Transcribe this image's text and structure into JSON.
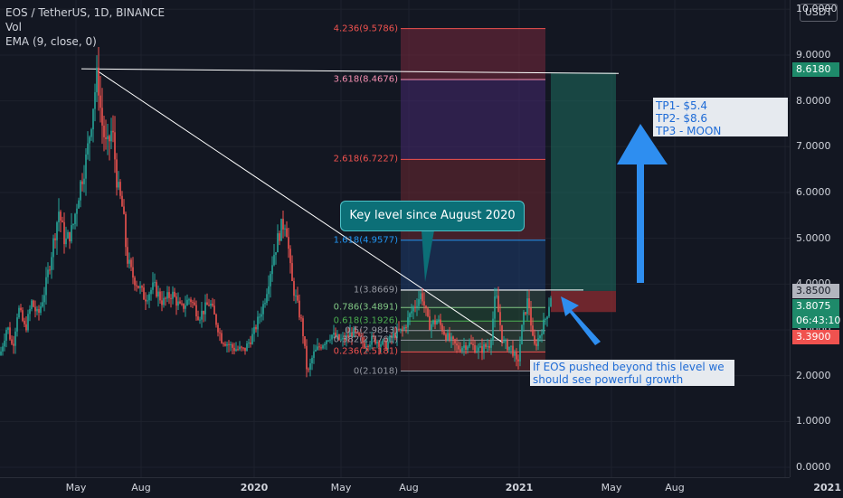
{
  "header": {
    "symbol_line": "EOS / TetherUS, 1D, BINANCE",
    "vol_label": "Vol",
    "ema_label": "EMA (9, close, 0)",
    "currency": "USDT"
  },
  "chart_data": {
    "type": "candlestick",
    "symbol": "EOS / TetherUS",
    "interval": "1D",
    "exchange": "BINANCE",
    "y_range": [
      0,
      10.2
    ],
    "y_ticks": [
      "0.0000",
      "1.0000",
      "2.0000",
      "3.0000",
      "4.0000",
      "5.0000",
      "6.0000",
      "7.0000",
      "8.0000",
      "9.0000",
      "10.0000"
    ],
    "x_ticks": [
      {
        "label": "May",
        "bold": false
      },
      {
        "label": "Aug",
        "bold": false
      },
      {
        "label": "2020",
        "bold": true
      },
      {
        "label": "May",
        "bold": false
      },
      {
        "label": "Aug",
        "bold": false
      },
      {
        "label": "2021",
        "bold": true
      },
      {
        "label": "May",
        "bold": false
      },
      {
        "label": "Aug",
        "bold": false
      },
      {
        "label": "2021",
        "bold": true
      }
    ],
    "price_path": [
      [
        0,
        2.45
      ],
      [
        8,
        3.1
      ],
      [
        14,
        2.6
      ],
      [
        20,
        3.5
      ],
      [
        28,
        3.0
      ],
      [
        35,
        3.6
      ],
      [
        42,
        3.3
      ],
      [
        50,
        3.9
      ],
      [
        58,
        4.8
      ],
      [
        65,
        5.6
      ],
      [
        72,
        4.9
      ],
      [
        80,
        5.2
      ],
      [
        88,
        6.1
      ],
      [
        96,
        6.8
      ],
      [
        104,
        8.1
      ],
      [
        108,
        8.6
      ],
      [
        112,
        7.6
      ],
      [
        118,
        6.9
      ],
      [
        124,
        7.4
      ],
      [
        130,
        6.1
      ],
      [
        136,
        5.6
      ],
      [
        140,
        4.6
      ],
      [
        146,
        4.2
      ],
      [
        152,
        4.0
      ],
      [
        160,
        3.7
      ],
      [
        170,
        3.95
      ],
      [
        180,
        3.6
      ],
      [
        190,
        3.8
      ],
      [
        200,
        3.45
      ],
      [
        210,
        3.7
      ],
      [
        220,
        3.3
      ],
      [
        232,
        3.6
      ],
      [
        245,
        2.8
      ],
      [
        258,
        2.6
      ],
      [
        270,
        2.55
      ],
      [
        280,
        2.9
      ],
      [
        292,
        3.6
      ],
      [
        302,
        4.6
      ],
      [
        310,
        5.2
      ],
      [
        316,
        5.4
      ],
      [
        322,
        4.1
      ],
      [
        328,
        3.6
      ],
      [
        334,
        3.1
      ],
      [
        340,
        2.0
      ],
      [
        346,
        2.45
      ],
      [
        356,
        2.7
      ],
      [
        366,
        2.9
      ],
      [
        378,
        2.75
      ],
      [
        390,
        2.95
      ],
      [
        402,
        2.7
      ],
      [
        414,
        2.8
      ],
      [
        426,
        2.65
      ],
      [
        436,
        2.9
      ],
      [
        446,
        3.0
      ],
      [
        456,
        3.45
      ],
      [
        466,
        3.8
      ],
      [
        474,
        3.1
      ],
      [
        484,
        3.2
      ],
      [
        494,
        2.85
      ],
      [
        506,
        2.6
      ],
      [
        518,
        2.7
      ],
      [
        530,
        2.55
      ],
      [
        542,
        2.7
      ],
      [
        548,
        3.8
      ],
      [
        556,
        2.7
      ],
      [
        566,
        2.6
      ],
      [
        572,
        2.2
      ],
      [
        578,
        3.2
      ],
      [
        584,
        3.7
      ],
      [
        590,
        2.6
      ],
      [
        596,
        2.85
      ],
      [
        604,
        3.3
      ],
      [
        610,
        3.84
      ]
    ],
    "volume_note": "",
    "fibonacci": [
      {
        "label": "4.236(9.5786)",
        "price": 9.5786,
        "color": "#f0524f"
      },
      {
        "label": "3.618(8.4676)",
        "price": 8.4676,
        "color": "#f48fb1"
      },
      {
        "label": "2.618(6.7227)",
        "price": 6.7227,
        "color": "#f0524f"
      },
      {
        "label": "1.618(4.9577)",
        "price": 4.9577,
        "color": "#2196f3"
      },
      {
        "label": "1(3.8669)",
        "price": 3.8669,
        "color": "#9598a1"
      },
      {
        "label": "0.786(3.4891)",
        "price": 3.4891,
        "color": "#81c784"
      },
      {
        "label": "0.618(3.1926)",
        "price": 3.1926,
        "color": "#4caf50"
      },
      {
        "label": "0.5(2.9843)",
        "price": 2.9843,
        "color": "#9598a1"
      },
      {
        "label": "0.382(2.7761)",
        "price": 2.7761,
        "color": "#9598a1"
      },
      {
        "label": "0.236(2.5181)",
        "price": 2.5181,
        "color": "#f0524f"
      },
      {
        "label": "0(2.1018)",
        "price": 2.1018,
        "color": "#9598a1"
      }
    ],
    "price_labels": [
      {
        "text": "8.6180",
        "price": 8.618,
        "bg": "#1e8a6a",
        "fg": "#ffffff"
      },
      {
        "text": "3.8500",
        "price": 3.85,
        "bg": "#b2b5be",
        "fg": "#131722"
      },
      {
        "text": "3.8075",
        "price": 3.8075,
        "bg": "#1e8a6a",
        "fg": "#ffffff"
      },
      {
        "text": "06:43:10",
        "price": 3.2,
        "bg": "#1e8a6a",
        "fg": "#ffffff"
      },
      {
        "text": "3.3900",
        "price": 2.85,
        "bg": "#f0524f",
        "fg": "#ffffff"
      }
    ],
    "annotations": {
      "key_level": "Key level since August 2020",
      "targets": [
        "TP1- $5.4",
        "TP2- $8.6",
        "TP3 - MOON"
      ],
      "note_line1": "If EOS pushed beyond this level we",
      "note_line2": "should see powerful growth"
    },
    "colors": {
      "up": "#26a69a",
      "down": "#ef5350",
      "background": "#131722",
      "grid": "#1e222d",
      "arrow": "#2e8ef0"
    }
  }
}
